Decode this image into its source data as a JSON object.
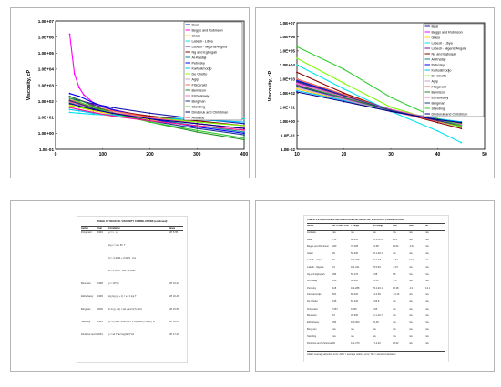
{
  "slides": [
    {
      "label": "slide-1"
    },
    {
      "label": "slide-2"
    },
    {
      "label": "slide-3"
    },
    {
      "label": "slide-4"
    }
  ],
  "chart_data": [
    {
      "type": "line",
      "ylabel": "Viscosity, cP",
      "xlim": [
        0,
        400
      ],
      "x_ticks": [
        "0",
        "100",
        "200",
        "300",
        "400"
      ],
      "y_log": true,
      "ylim": [
        0.1,
        10000000
      ],
      "y_ticks": [
        "1.0E-01",
        "1.0E+00",
        "1.0E+01",
        "1.0E+02",
        "1.0E+03",
        "1.0E+04",
        "1.0E+05",
        "1.0E+06",
        "1.0E+07"
      ],
      "legend_position": "top-right",
      "series": [
        {
          "name": "Beal",
          "color": "#1a1aa6",
          "x": [
            30,
            50,
            80,
            120,
            200,
            300,
            400
          ],
          "y": [
            150,
            110,
            70,
            40,
            18,
            8,
            4
          ]
        },
        {
          "name": "Beggs and Robinson",
          "color": "#ff00ff",
          "x": [
            30,
            40,
            50,
            60,
            80,
            120,
            200,
            300,
            400
          ],
          "y": [
            1500000,
            5000,
            700,
            250,
            80,
            30,
            10,
            4,
            2
          ]
        },
        {
          "name": "Glaso",
          "color": "#ffd700",
          "x": [
            30,
            50,
            80,
            120,
            200,
            300,
            400
          ],
          "y": [
            60,
            40,
            25,
            15,
            7,
            3,
            1.5
          ]
        },
        {
          "name": "Labedi - Libya",
          "color": "#00e5ee",
          "x": [
            30,
            50,
            80,
            120,
            200,
            300,
            400
          ],
          "y": [
            20,
            18,
            15,
            13,
            11,
            9,
            8
          ]
        },
        {
          "name": "Labedi - Nigeria/Angola",
          "color": "#6a0dad",
          "x": [
            30,
            50,
            80,
            120,
            200,
            300,
            400
          ],
          "y": [
            200,
            120,
            60,
            30,
            10,
            4,
            2
          ]
        },
        {
          "name": "Ng and Egbogah",
          "color": "#8b0000",
          "x": [
            30,
            50,
            80,
            120,
            200,
            300,
            400
          ],
          "y": [
            100,
            70,
            40,
            25,
            12,
            6,
            3
          ]
        },
        {
          "name": "Al-Khafaji",
          "color": "#008b8b",
          "x": [
            30,
            50,
            80,
            120,
            200,
            300,
            400
          ],
          "y": [
            80,
            50,
            30,
            20,
            8,
            3,
            1.2
          ]
        },
        {
          "name": "Petrosky",
          "color": "#0000ff",
          "x": [
            30,
            50,
            80,
            120,
            200,
            300,
            400
          ],
          "y": [
            300,
            200,
            80,
            30,
            8,
            2.5,
            1
          ]
        },
        {
          "name": "Kartoatmodjo",
          "color": "#00bfff",
          "x": [
            30,
            50,
            80,
            120,
            200,
            300,
            400
          ],
          "y": [
            30,
            25,
            18,
            14,
            9,
            7,
            5
          ]
        },
        {
          "name": "De Ghetto",
          "color": "#7cfc00",
          "x": [
            30,
            50,
            80,
            120,
            200,
            300,
            400
          ],
          "y": [
            50,
            40,
            30,
            20,
            10,
            5,
            3
          ]
        },
        {
          "name": "Agip",
          "color": "#c8a2c8",
          "x": [
            30,
            50,
            80,
            120,
            200,
            300,
            400
          ],
          "y": [
            40,
            30,
            20,
            12,
            6,
            3,
            1.5
          ]
        },
        {
          "name": "Fitzgerald",
          "color": "#ff6347",
          "x": [
            30,
            50,
            80,
            120,
            200,
            300,
            400
          ],
          "y": [
            120,
            80,
            45,
            25,
            10,
            4,
            2
          ]
        },
        {
          "name": "Bennison",
          "color": "#228b22",
          "x": [
            30,
            50,
            80,
            120,
            200,
            300,
            400
          ],
          "y": [
            200,
            120,
            50,
            20,
            5,
            1.2,
            0.4
          ]
        },
        {
          "name": "Elsharkawy",
          "color": "#ff69b4",
          "x": [
            30,
            50,
            80,
            120,
            200,
            300,
            400
          ],
          "y": [
            90,
            60,
            35,
            20,
            9,
            4,
            2
          ]
        },
        {
          "name": "Bergman",
          "color": "#1e3a8a",
          "x": [
            30,
            50,
            80,
            120,
            200,
            300,
            400
          ],
          "y": [
            110,
            70,
            35,
            18,
            6,
            2,
            0.8
          ]
        },
        {
          "name": "Standing",
          "color": "#32cd32",
          "x": [
            30,
            50,
            80,
            120,
            200,
            300,
            400
          ],
          "y": [
            150,
            90,
            40,
            18,
            5,
            1.5,
            0.5
          ]
        },
        {
          "name": "Dindoruk and Christman",
          "color": "#00008b",
          "x": [
            30,
            50,
            80,
            120,
            200,
            300,
            400
          ],
          "y": [
            70,
            50,
            30,
            18,
            8,
            4,
            2
          ]
        },
        {
          "name": "Andrade",
          "color": "#ff1493",
          "x": [
            30,
            50,
            80,
            120,
            200,
            300,
            400
          ],
          "y": [
            40,
            30,
            20,
            12,
            6,
            3,
            1.6
          ]
        }
      ]
    },
    {
      "type": "line",
      "ylabel": "Viscosity, cP",
      "xlim": [
        10,
        50
      ],
      "x_ticks": [
        "10",
        "20",
        "30",
        "40",
        "50"
      ],
      "y_log": true,
      "ylim": [
        0.01,
        10000000
      ],
      "y_ticks": [
        "1.0E-02",
        "1.0E-01",
        "1.0E+00",
        "1.0E+01",
        "1.0E+02",
        "1.0E+03",
        "1.0E+04",
        "1.0E+05",
        "1.0E+06",
        "1.0E+07"
      ],
      "legend_position": "top-right",
      "series": [
        {
          "name": "Beal",
          "color": "#1a1aa6",
          "x": [
            10,
            20,
            30,
            40,
            45
          ],
          "y": [
            300,
            40,
            6,
            1.5,
            0.8
          ]
        },
        {
          "name": "Beggs and Robinson",
          "color": "#ff00ff",
          "x": [
            10,
            20,
            30,
            40,
            45
          ],
          "y": [
            400,
            40,
            5,
            1,
            0.5
          ]
        },
        {
          "name": "Glaso",
          "color": "#ffd700",
          "x": [
            10,
            20,
            30,
            40,
            45
          ],
          "y": [
            200,
            30,
            5,
            1.2,
            0.7
          ]
        },
        {
          "name": "Labedi - Libya",
          "color": "#00e5ee",
          "x": [
            10,
            20,
            30,
            40,
            45
          ],
          "y": [
            10000,
            200,
            5,
            0.2,
            0.03
          ]
        },
        {
          "name": "Labedi - Nigeria/Angola",
          "color": "#6a0dad",
          "x": [
            10,
            20,
            30,
            40,
            45
          ],
          "y": [
            600,
            60,
            6,
            1,
            0.4
          ]
        },
        {
          "name": "Ng and Egbogah",
          "color": "#8b0000",
          "x": [
            10,
            20,
            30,
            40,
            45
          ],
          "y": [
            3000,
            100,
            6,
            0.8,
            0.3
          ]
        },
        {
          "name": "Al-Khafaji",
          "color": "#008b8b",
          "x": [
            10,
            20,
            30,
            40,
            45
          ],
          "y": [
            500,
            50,
            6,
            1.2,
            0.6
          ]
        },
        {
          "name": "Petrosky",
          "color": "#0000ff",
          "x": [
            10,
            20,
            30,
            40,
            45
          ],
          "y": [
            800,
            70,
            7,
            1.2,
            0.5
          ]
        },
        {
          "name": "Kartoatmodjo",
          "color": "#00bfff",
          "x": [
            10,
            20,
            30,
            40,
            45
          ],
          "y": [
            150,
            30,
            6,
            1.5,
            0.9
          ]
        },
        {
          "name": "De Ghetto",
          "color": "#7cfc00",
          "x": [
            10,
            20,
            30,
            40,
            45
          ],
          "y": [
            30000,
            500,
            10,
            1,
            0.4
          ]
        },
        {
          "name": "Agip",
          "color": "#c8a2c8",
          "x": [
            10,
            20,
            30,
            40,
            45
          ],
          "y": [
            250,
            35,
            5,
            1.1,
            0.6
          ]
        },
        {
          "name": "Fitzgerald",
          "color": "#ff6347",
          "x": [
            10,
            20,
            30,
            40,
            45
          ],
          "y": [
            1000,
            80,
            6,
            1,
            0.5
          ]
        },
        {
          "name": "Bennison",
          "color": "#228b22",
          "x": [
            10,
            20,
            30,
            40,
            45
          ],
          "y": [
            350,
            45,
            6,
            1.3,
            0.7
          ]
        },
        {
          "name": "Elsharkawy",
          "color": "#ff69b4",
          "x": [
            10,
            20,
            30,
            40,
            45
          ],
          "y": [
            500,
            55,
            7,
            1.3,
            0.6
          ]
        },
        {
          "name": "Bergman",
          "color": "#1e3a8a",
          "x": [
            10,
            20,
            30,
            40,
            45
          ],
          "y": [
            700,
            65,
            6,
            1.1,
            0.5
          ]
        },
        {
          "name": "Standing",
          "color": "#32cd32",
          "x": [
            10,
            20,
            30,
            40,
            45
          ],
          "y": [
            200000,
            5000,
            50,
            1.5,
            0.5
          ]
        },
        {
          "name": "Dindoruk and Christman",
          "color": "#00008b",
          "x": [
            10,
            20,
            30,
            40,
            45
          ],
          "y": [
            120,
            25,
            5,
            1.3,
            0.8
          ]
        }
      ]
    }
  ],
  "doc3": {
    "title": "TABLE 4-7   DEAD OIL VISCOSITY CORRELATIONS (continued)",
    "headers": [
      "Author",
      "Year",
      "Correlation",
      "Range"
    ],
    "rows": [
      {
        "author": "Fitzgerald",
        "year": "1994",
        "formula": "μ = ν · ρ",
        "range": "API 5-55"
      },
      {
        "author": "",
        "year": "",
        "formula": "log ν = A + B / T",
        "range": ""
      },
      {
        "author": "",
        "year": "",
        "formula": "A = -4.3414 + 0.0271 · Kw",
        "range": ""
      },
      {
        "author": "",
        "year": "",
        "formula": "B = 2.5316 · Kw² - 0.9421",
        "range": ""
      },
      {
        "author": "Bennison",
        "year": "1998",
        "formula": "μ = 10^(x)",
        "range": "API 10-20"
      },
      {
        "author": "Elsharkawy",
        "year": "1999",
        "formula": "log log (μ + 1) = a - b log T",
        "range": "API 20-48"
      },
      {
        "author": "Bergman",
        "year": "2000",
        "formula": "ln ln (μ + 1) = a0 + a1 ln(T+310)",
        "range": "API 15-55"
      },
      {
        "author": "Standing",
        "year": "1981",
        "formula": "μ = (0.32 + 1.8e7/API^4.53)(360/(T+200))^a",
        "range": "API 16-58"
      },
      {
        "author": "Dindoruk and Christman",
        "year": "2001",
        "formula": "μ = a1 T^a2 log(API)^a3",
        "range": "API 17-40"
      }
    ]
  },
  "doc4": {
    "title": "TABLE 4-8   ADDITIONAL INFORMATION FOR DEAD OIL VISCOSITY CORRELATIONS",
    "headers": [
      "Author",
      "No. of Data Points",
      "T Range",
      "API Range",
      "AAE",
      "ARE",
      "SD"
    ],
    "rows": [
      [
        "Andrade",
        "n/a",
        "n/a",
        "n/a",
        "n/a",
        "n/a",
        "n/a"
      ],
      [
        "Beal",
        "753",
        "98-250",
        "10.1-52.5",
        "24.2",
        "n/a",
        "n/a"
      ],
      [
        "Beggs and Robinson",
        "460",
        "70-295",
        "16-58",
        "13.64",
        "-0.64",
        "n/a"
      ],
      [
        "Glaso",
        "26",
        "50-300",
        "20.1-48.1",
        "n/a",
        "n/a",
        "n/a"
      ],
      [
        "Labedi - Libya",
        "91",
        "100-306",
        "32.2-48",
        "-2.61",
        "21.2",
        "n/a"
      ],
      [
        "Labedi - Nigeria",
        "31",
        "104-221",
        "25.5-45",
        "-0.07",
        "n/a",
        "n/a"
      ],
      [
        "Ng and Egbogah",
        "394",
        "59-176",
        "5-58",
        "6.6",
        "n/a",
        "n/a"
      ],
      [
        "Al-Khafaji",
        "350",
        "60-300",
        "15-51",
        "-2.4",
        "n/a",
        "n/a"
      ],
      [
        "Petrosky",
        "118",
        "114-288",
        "25.4-46.1",
        "12.38",
        "-3.1",
        "14.1"
      ],
      [
        "Kartoatmodjo",
        "661",
        "80-320",
        "14.4-59",
        "-13.15",
        "n/a",
        "n/a"
      ],
      [
        "De Ghetto",
        "195",
        "81-342",
        "6-56.8",
        "n/a",
        "n/a",
        "n/a"
      ],
      [
        "Fitzgerald",
        "7267",
        "0-305",
        "5-55",
        "n/a",
        "n/a",
        "n/a"
      ],
      [
        "Bennison",
        "16",
        "39-300",
        "11.1-19.7",
        "n/a",
        "n/a",
        "n/a"
      ],
      [
        "Elsharkawy",
        "254",
        "100-300",
        "20-48",
        "n/a",
        "n/a",
        "n/a"
      ],
      [
        "Bergman",
        "n/a",
        "n/a",
        "n/a",
        "n/a",
        "n/a",
        "n/a"
      ],
      [
        "Standing",
        "n/a",
        "n/a",
        "n/a",
        "n/a",
        "n/a",
        "n/a"
      ],
      [
        "Dindoruk and Christman",
        "95",
        "121-276",
        "17.4-40",
        "12.62",
        "n/a",
        "n/a"
      ]
    ],
    "footnote": "AAE = average absolute error; ARE = average relative error; SD = standard deviation"
  }
}
